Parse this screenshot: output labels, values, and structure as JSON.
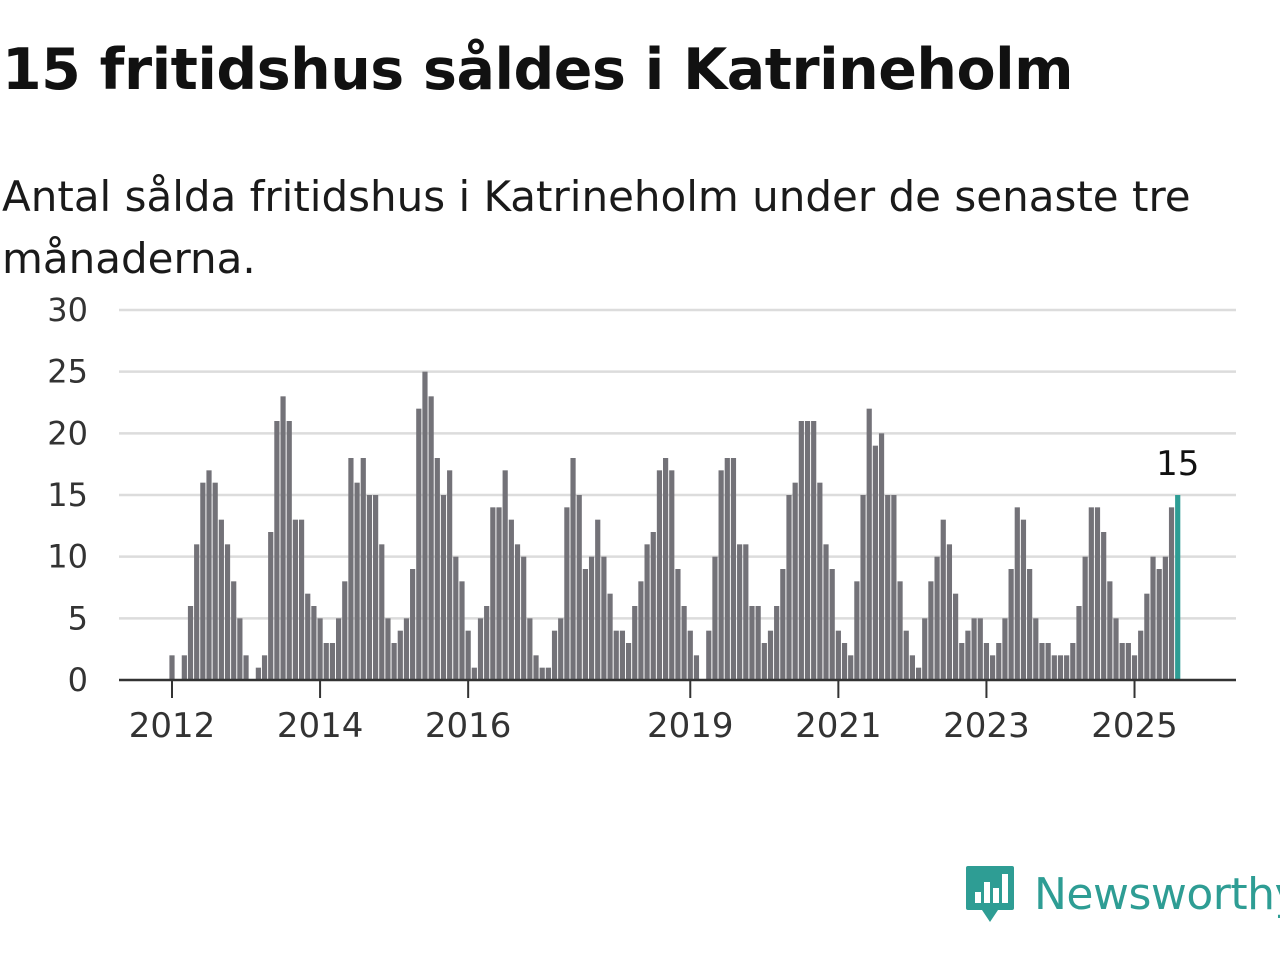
{
  "title": "15 fritidshus såldes i Katrineholm",
  "subtitle": "Antal sålda fritidshus i Katrineholm under de senaste tre månaderna.",
  "brand": {
    "name": "Newsworthy",
    "icon": "newsworthy-logo-icon",
    "color": "#2e9d94"
  },
  "chart_data": {
    "type": "bar",
    "ylim": [
      0,
      30
    ],
    "y_ticks": [
      "0",
      "5",
      "10",
      "15",
      "20",
      "25",
      "30"
    ],
    "x_ticks": [
      {
        "label": "2012",
        "index": 0
      },
      {
        "label": "2014",
        "index": 24
      },
      {
        "label": "2016",
        "index": 48
      },
      {
        "label": "2019",
        "index": 84
      },
      {
        "label": "2021",
        "index": 108
      },
      {
        "label": "2023",
        "index": 132
      },
      {
        "label": "2025",
        "index": 156
      }
    ],
    "grid": true,
    "bar_color": "#737278",
    "highlight_color": "#2e9d94",
    "highlight_label": "15",
    "values": [
      2,
      0,
      2,
      6,
      11,
      16,
      17,
      16,
      13,
      11,
      8,
      5,
      2,
      0,
      1,
      2,
      12,
      21,
      23,
      21,
      13,
      13,
      7,
      6,
      5,
      3,
      3,
      5,
      8,
      18,
      16,
      18,
      15,
      15,
      11,
      5,
      3,
      4,
      5,
      9,
      22,
      25,
      23,
      18,
      15,
      17,
      10,
      8,
      4,
      1,
      5,
      6,
      14,
      14,
      17,
      13,
      11,
      10,
      5,
      2,
      1,
      1,
      4,
      5,
      14,
      18,
      15,
      9,
      10,
      13,
      10,
      7,
      4,
      4,
      3,
      6,
      8,
      11,
      12,
      17,
      18,
      17,
      9,
      6,
      4,
      2,
      0,
      4,
      10,
      17,
      18,
      18,
      11,
      11,
      6,
      6,
      3,
      4,
      6,
      9,
      15,
      16,
      21,
      21,
      21,
      16,
      11,
      9,
      4,
      3,
      2,
      8,
      15,
      22,
      19,
      20,
      15,
      15,
      8,
      4,
      2,
      1,
      5,
      8,
      10,
      13,
      11,
      7,
      3,
      4,
      5,
      5,
      3,
      2,
      3,
      5,
      9,
      14,
      13,
      9,
      5,
      3,
      3,
      2,
      2,
      2,
      3,
      6,
      10,
      14,
      14,
      12,
      8,
      5,
      3,
      3,
      2,
      4,
      7,
      10,
      9,
      10,
      14,
      15
    ]
  }
}
